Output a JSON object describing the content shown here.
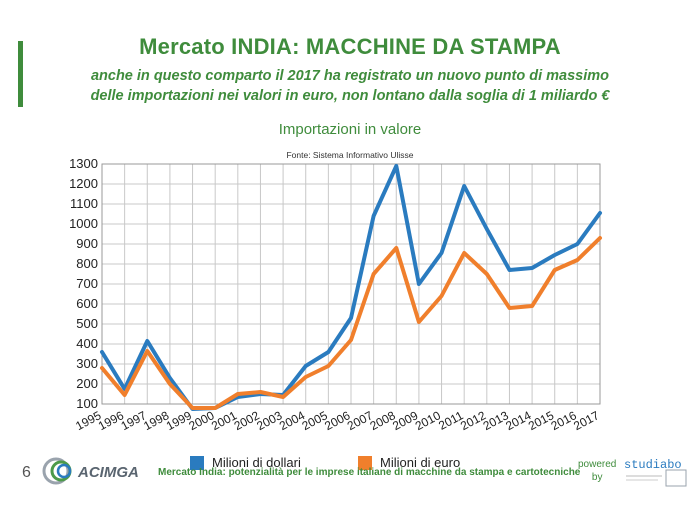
{
  "header": {
    "title": "Mercato INDIA: MACCHINE DA STAMPA",
    "subtitle_line1": "anche in questo comparto il 2017 ha registrato un nuovo punto di massimo",
    "subtitle_line2": "delle importazioni nei valori in euro, non lontano dalla soglia di 1 miliardo €"
  },
  "chart_data": {
    "type": "line",
    "title": "Importazioni in valore",
    "source_note": "Fonte: Sistema Informativo Ulisse",
    "x": [
      "1995",
      "1996",
      "1997",
      "1998",
      "1999",
      "2000",
      "2001",
      "2002",
      "2003",
      "2004",
      "2005",
      "2006",
      "2007",
      "2008",
      "2009",
      "2010",
      "2011",
      "2012",
      "2013",
      "2014",
      "2015",
      "2016",
      "2017"
    ],
    "ylim": [
      100,
      1300
    ],
    "yticks": [
      100,
      200,
      300,
      400,
      500,
      600,
      700,
      800,
      900,
      1000,
      1100,
      1200,
      1300
    ],
    "grid": true,
    "legend_position": "bottom",
    "series": [
      {
        "name": "Milioni di dollari",
        "color": "#2a7bbf",
        "values": [
          360,
          175,
          415,
          230,
          75,
          80,
          135,
          150,
          145,
          290,
          360,
          530,
          1040,
          1290,
          700,
          855,
          1190,
          975,
          770,
          780,
          845,
          900,
          1055
        ]
      },
      {
        "name": "Milioni di euro",
        "color": "#f07f2c",
        "values": [
          280,
          145,
          365,
          200,
          80,
          80,
          150,
          160,
          135,
          235,
          290,
          420,
          750,
          880,
          510,
          640,
          855,
          750,
          580,
          590,
          770,
          820,
          930
        ]
      }
    ]
  },
  "footer": {
    "page_number": "6",
    "logo_text": "ACIMGA",
    "caption": "Mercato India: potenzialità per le imprese italiane di macchine da stampa e cartotecniche",
    "powered_line1": "powered",
    "powered_line2": "by",
    "studia_logo_text": "studiabo"
  }
}
